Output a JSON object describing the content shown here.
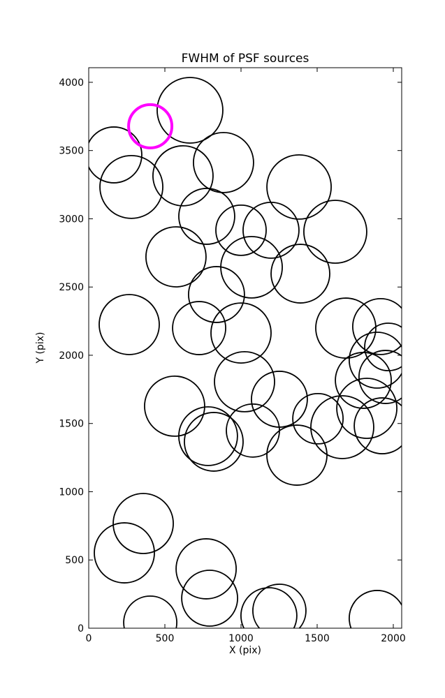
{
  "chart_data": {
    "type": "scatter",
    "title": "FWHM of PSF sources",
    "xlabel": "X (pix)",
    "ylabel": "Y (pix)",
    "xlim": [
      0,
      2055
    ],
    "ylim": [
      0,
      4107
    ],
    "xticks": [
      0,
      500,
      1000,
      1500,
      2000
    ],
    "yticks": [
      0,
      500,
      1000,
      1500,
      2000,
      2500,
      3000,
      3500,
      4000
    ],
    "grid": false,
    "legend": null,
    "marker_style": {
      "fill": "none",
      "color": "#000000",
      "linewidth": 1.8
    },
    "highlight_style": {
      "fill": "none",
      "color": "#FF00FF",
      "linewidth": 4
    },
    "points": [
      {
        "x": 665,
        "y": 3795,
        "r": 47
      },
      {
        "x": 404,
        "y": 3678,
        "r": 31,
        "highlight": true
      },
      {
        "x": 885,
        "y": 3412,
        "r": 43
      },
      {
        "x": 165,
        "y": 3468,
        "r": 40
      },
      {
        "x": 280,
        "y": 3233,
        "r": 45
      },
      {
        "x": 619,
        "y": 3315,
        "r": 43
      },
      {
        "x": 775,
        "y": 3018,
        "r": 40
      },
      {
        "x": 573,
        "y": 2721,
        "r": 43
      },
      {
        "x": 1381,
        "y": 3233,
        "r": 46
      },
      {
        "x": 1197,
        "y": 2916,
        "r": 40
      },
      {
        "x": 1619,
        "y": 2905,
        "r": 45
      },
      {
        "x": 1390,
        "y": 2598,
        "r": 42
      },
      {
        "x": 1069,
        "y": 2645,
        "r": 44
      },
      {
        "x": 1000,
        "y": 2916,
        "r": 36
      },
      {
        "x": 839,
        "y": 2445,
        "r": 40
      },
      {
        "x": 266,
        "y": 2225,
        "r": 43
      },
      {
        "x": 725,
        "y": 2199,
        "r": 38
      },
      {
        "x": 1000,
        "y": 2163,
        "r": 43
      },
      {
        "x": 1688,
        "y": 2199,
        "r": 43
      },
      {
        "x": 1917,
        "y": 2210,
        "r": 40
      },
      {
        "x": 1894,
        "y": 1964,
        "r": 40
      },
      {
        "x": 1949,
        "y": 1841,
        "r": 38
      },
      {
        "x": 1968,
        "y": 2061,
        "r": 34
      },
      {
        "x": 1803,
        "y": 1816,
        "r": 40
      },
      {
        "x": 1826,
        "y": 1611,
        "r": 43
      },
      {
        "x": 1665,
        "y": 1473,
        "r": 45
      },
      {
        "x": 1927,
        "y": 1483,
        "r": 40
      },
      {
        "x": 1023,
        "y": 1806,
        "r": 43
      },
      {
        "x": 1252,
        "y": 1678,
        "r": 40
      },
      {
        "x": 564,
        "y": 1627,
        "r": 43
      },
      {
        "x": 784,
        "y": 1407,
        "r": 42
      },
      {
        "x": 821,
        "y": 1366,
        "r": 42
      },
      {
        "x": 1078,
        "y": 1448,
        "r": 38
      },
      {
        "x": 1367,
        "y": 1268,
        "r": 43
      },
      {
        "x": 1505,
        "y": 1535,
        "r": 36
      },
      {
        "x": 358,
        "y": 767,
        "r": 43
      },
      {
        "x": 234,
        "y": 552,
        "r": 43
      },
      {
        "x": 771,
        "y": 435,
        "r": 43
      },
      {
        "x": 794,
        "y": 220,
        "r": 40
      },
      {
        "x": 404,
        "y": 41,
        "r": 38
      },
      {
        "x": 1183,
        "y": 92,
        "r": 40
      },
      {
        "x": 1252,
        "y": 128,
        "r": 38
      },
      {
        "x": 1894,
        "y": 72,
        "r": 40
      }
    ]
  }
}
